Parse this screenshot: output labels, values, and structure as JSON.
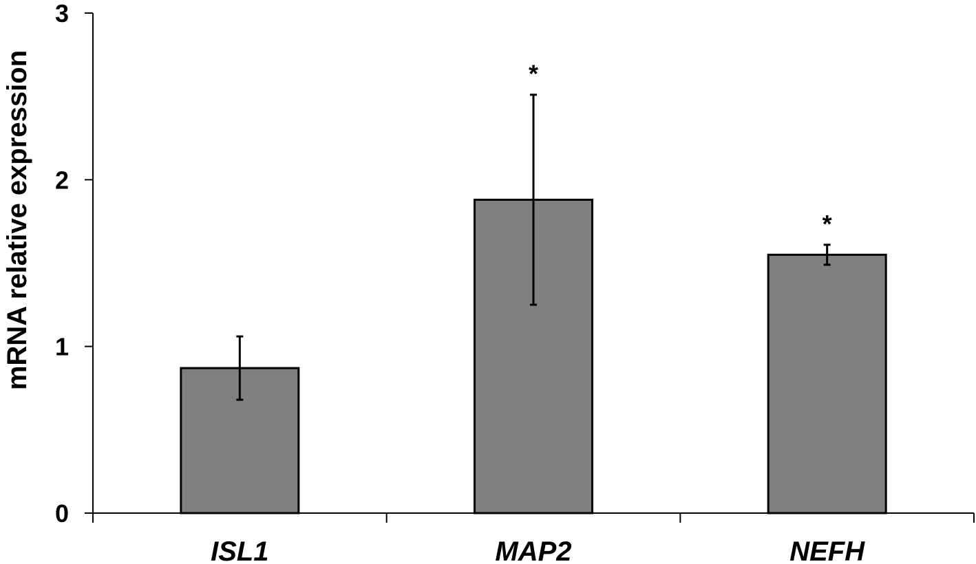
{
  "chart_data": {
    "type": "bar",
    "ylabel": "mRNA relative expression",
    "xlabel": "",
    "ylim": [
      0,
      3
    ],
    "yticks": [
      0,
      1,
      2,
      3
    ],
    "categories": [
      "ISL1",
      "MAP2",
      "NEFH"
    ],
    "values": [
      0.87,
      1.88,
      1.55
    ],
    "error": [
      0.19,
      0.63,
      0.06
    ],
    "significance": [
      "",
      "*",
      "*"
    ],
    "grid": false,
    "bar_color": "#808080",
    "bar_edge_color": "#000000"
  }
}
